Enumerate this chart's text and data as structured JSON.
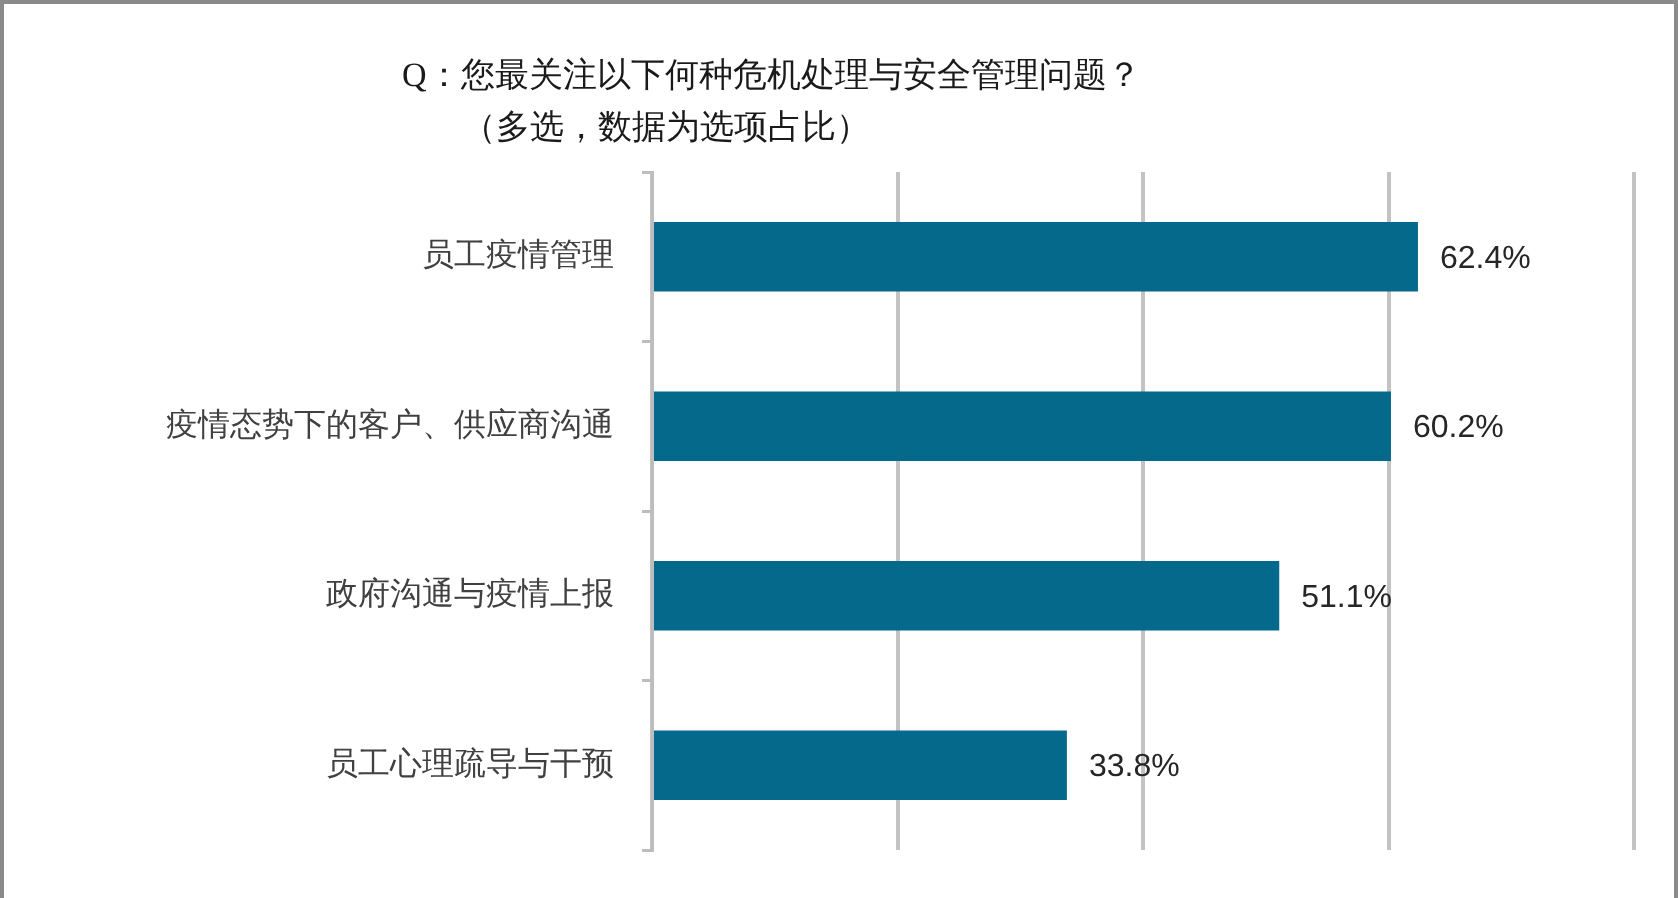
{
  "chart_data": {
    "type": "bar",
    "orientation": "horizontal",
    "title": "Q：您最关注以下何种危机处理与安全管理问题？",
    "subtitle": "（多选，数据为选项占比）",
    "categories": [
      "员工疫情管理",
      "疫情态势下的客户、供应商沟通",
      "政府沟通与疫情上报",
      "员工心理疏导与干预"
    ],
    "values": [
      62.4,
      60.2,
      51.1,
      33.8
    ],
    "value_labels": [
      "62.4%",
      "60.2%",
      "51.1%",
      "33.8%"
    ],
    "color": "#04698a",
    "xlim": [
      0,
      80
    ],
    "xticks": [
      {
        "value": 0,
        "label": null
      },
      {
        "value": 20,
        "label": null
      },
      {
        "value": 40,
        "label": null
      },
      {
        "value": 60,
        "label": null
      },
      {
        "value": 80,
        "label": null
      }
    ],
    "grid": "x",
    "tick_labels": "y"
  }
}
